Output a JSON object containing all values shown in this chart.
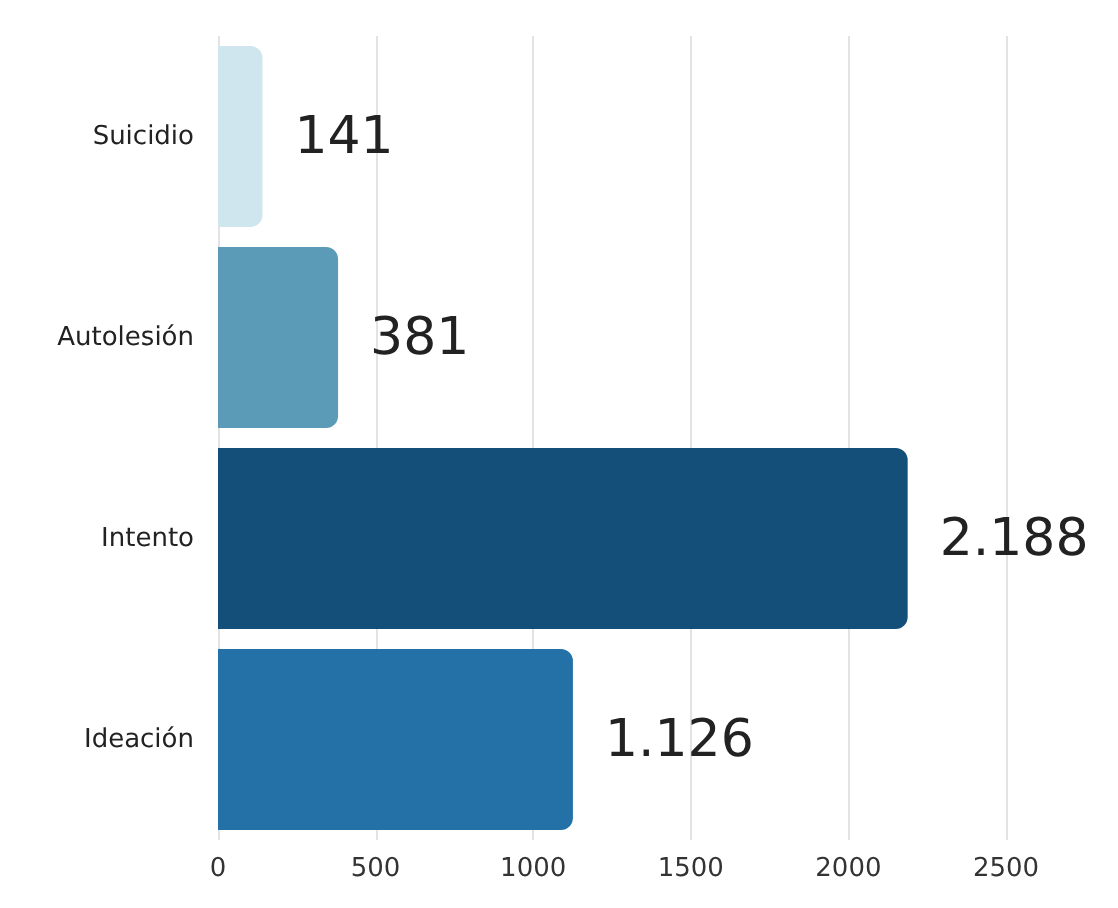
{
  "chart_data": {
    "type": "bar",
    "orientation": "horizontal",
    "categories": [
      "Suicidio",
      "Autolesión",
      "Intento",
      "Ideación"
    ],
    "values": [
      141,
      381,
      2188,
      1126
    ],
    "colors": [
      "#cfe6ee",
      "#5b9bb8",
      "#134f78",
      "#2471a8"
    ],
    "value_labels": [
      "141",
      "381",
      "2.188",
      "1.126"
    ],
    "xlim": [
      0,
      2500
    ],
    "xticks": [
      0,
      500,
      1000,
      1500,
      2000,
      2500
    ],
    "grid": "x"
  }
}
